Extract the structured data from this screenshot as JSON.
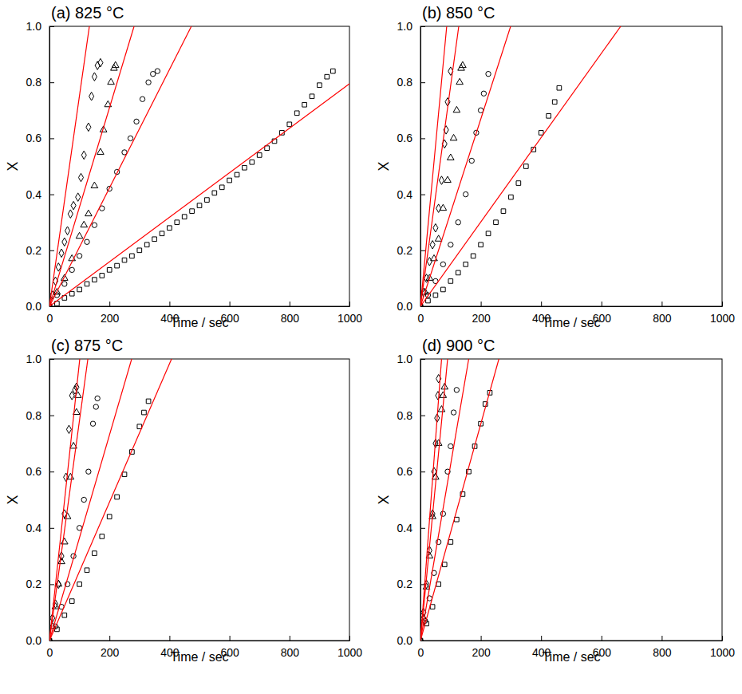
{
  "chart_data": [
    {
      "type": "scatter",
      "title": "(a) 825 °C",
      "x_label": "Time / sec",
      "y_label": "X",
      "xlim": [
        0,
        1000
      ],
      "ylim": [
        0,
        1
      ],
      "xticks": [
        0,
        200,
        400,
        600,
        800,
        1000
      ],
      "yticks": [
        {
          "value": 0,
          "label": "0.0"
        },
        0.2,
        0.4,
        0.6,
        0.8,
        {
          "value": 1,
          "label": "1.0"
        }
      ],
      "series": [
        {
          "type": "scatter",
          "marker": "diamond",
          "color": "#000000",
          "x": [
            0,
            10,
            20,
            30,
            40,
            50,
            60,
            70,
            80,
            95,
            105,
            115,
            130,
            140,
            150,
            160,
            170
          ],
          "values": [
            0,
            0.04,
            0.09,
            0.14,
            0.19,
            0.23,
            0.27,
            0.33,
            0.36,
            0.39,
            0.46,
            0.54,
            0.64,
            0.75,
            0.82,
            0.86,
            0.87
          ]
        },
        {
          "type": "scatter",
          "marker": "triangle",
          "color": "#000000",
          "x": [
            0,
            25,
            50,
            75,
            100,
            115,
            130,
            150,
            170,
            180,
            195,
            205,
            215,
            220
          ],
          "values": [
            0,
            0.05,
            0.1,
            0.17,
            0.25,
            0.29,
            0.33,
            0.43,
            0.55,
            0.63,
            0.72,
            0.8,
            0.85,
            0.86
          ]
        },
        {
          "type": "scatter",
          "marker": "circle",
          "color": "#000000",
          "x": [
            0,
            25,
            50,
            75,
            100,
            125,
            150,
            175,
            200,
            225,
            250,
            270,
            290,
            310,
            330,
            345,
            360
          ],
          "values": [
            0,
            0.04,
            0.08,
            0.13,
            0.18,
            0.23,
            0.29,
            0.35,
            0.42,
            0.48,
            0.55,
            0.6,
            0.66,
            0.74,
            0.8,
            0.83,
            0.84
          ]
        },
        {
          "type": "scatter",
          "marker": "square",
          "color": "#000000",
          "x": [
            0,
            25,
            50,
            75,
            100,
            125,
            150,
            175,
            200,
            225,
            250,
            275,
            300,
            325,
            350,
            375,
            400,
            425,
            450,
            475,
            500,
            525,
            550,
            575,
            600,
            625,
            650,
            675,
            700,
            725,
            750,
            775,
            800,
            825,
            850,
            875,
            900,
            925,
            945
          ],
          "values": [
            0,
            0.01,
            0.03,
            0.045,
            0.06,
            0.08,
            0.095,
            0.11,
            0.13,
            0.145,
            0.165,
            0.18,
            0.2,
            0.22,
            0.24,
            0.26,
            0.28,
            0.3,
            0.32,
            0.34,
            0.36,
            0.38,
            0.405,
            0.425,
            0.45,
            0.47,
            0.495,
            0.515,
            0.54,
            0.565,
            0.59,
            0.62,
            0.65,
            0.69,
            0.72,
            0.75,
            0.79,
            0.82,
            0.84
          ]
        },
        {
          "type": "line",
          "line_style": "solid",
          "color": "#ff0000",
          "x": [
            0,
            133
          ],
          "values": [
            0,
            1
          ]
        },
        {
          "type": "line",
          "line_style": "solid",
          "color": "#ff0000",
          "x": [
            0,
            282
          ],
          "values": [
            0,
            1
          ]
        },
        {
          "type": "line",
          "line_style": "solid",
          "color": "#ff0000",
          "x": [
            0,
            473
          ],
          "values": [
            0,
            1
          ]
        },
        {
          "type": "line",
          "line_style": "solid",
          "color": "#ff0000",
          "x": [
            0,
            1000
          ],
          "values": [
            0,
            0.795
          ]
        }
      ]
    },
    {
      "type": "scatter",
      "title": "(b) 850 °C",
      "x_label": "Time / sec",
      "y_label": "X",
      "xlim": [
        0,
        1000
      ],
      "ylim": [
        0,
        1
      ],
      "xticks": [
        0,
        200,
        400,
        600,
        800,
        1000
      ],
      "yticks": [
        {
          "value": 0,
          "label": "0.0"
        },
        0.2,
        0.4,
        0.6,
        0.8,
        {
          "value": 1,
          "label": "1.0"
        }
      ],
      "series": [
        {
          "type": "scatter",
          "marker": "diamond",
          "color": "#000000",
          "x": [
            0,
            10,
            20,
            30,
            40,
            50,
            60,
            70,
            80,
            85,
            90,
            100
          ],
          "values": [
            0,
            0.05,
            0.1,
            0.16,
            0.22,
            0.28,
            0.35,
            0.45,
            0.58,
            0.63,
            0.73,
            0.84
          ]
        },
        {
          "type": "scatter",
          "marker": "triangle",
          "color": "#000000",
          "x": [
            0,
            15,
            30,
            45,
            60,
            75,
            90,
            100,
            110,
            120,
            130,
            135,
            140
          ],
          "values": [
            0,
            0.05,
            0.1,
            0.17,
            0.24,
            0.35,
            0.45,
            0.53,
            0.6,
            0.7,
            0.8,
            0.85,
            0.86
          ]
        },
        {
          "type": "scatter",
          "marker": "circle",
          "color": "#000000",
          "x": [
            0,
            25,
            50,
            75,
            100,
            125,
            150,
            170,
            185,
            200,
            210,
            225
          ],
          "values": [
            0,
            0.04,
            0.09,
            0.15,
            0.22,
            0.3,
            0.4,
            0.52,
            0.62,
            0.7,
            0.76,
            0.83
          ]
        },
        {
          "type": "scatter",
          "marker": "square",
          "color": "#000000",
          "x": [
            0,
            25,
            50,
            75,
            100,
            125,
            150,
            175,
            200,
            225,
            250,
            275,
            300,
            325,
            350,
            375,
            400,
            425,
            445,
            460
          ],
          "values": [
            0,
            0.02,
            0.04,
            0.06,
            0.09,
            0.12,
            0.15,
            0.18,
            0.22,
            0.26,
            0.3,
            0.34,
            0.39,
            0.44,
            0.5,
            0.56,
            0.62,
            0.68,
            0.73,
            0.78
          ]
        },
        {
          "type": "line",
          "line_style": "solid",
          "color": "#ff0000",
          "x": [
            0,
            87
          ],
          "values": [
            0,
            1
          ]
        },
        {
          "type": "line",
          "line_style": "solid",
          "color": "#ff0000",
          "x": [
            0,
            127
          ],
          "values": [
            0,
            1
          ]
        },
        {
          "type": "line",
          "line_style": "solid",
          "color": "#ff0000",
          "x": [
            0,
            299
          ],
          "values": [
            0,
            1
          ]
        },
        {
          "type": "line",
          "line_style": "solid",
          "color": "#ff0000",
          "x": [
            0,
            664
          ],
          "values": [
            0,
            1
          ]
        }
      ]
    },
    {
      "type": "scatter",
      "title": "(c) 875 °C",
      "x_label": "Time / sec",
      "y_label": "X",
      "xlim": [
        0,
        1000
      ],
      "ylim": [
        0,
        1
      ],
      "xticks": [
        0,
        200,
        400,
        600,
        800,
        1000
      ],
      "yticks": [
        {
          "value": 0,
          "label": "0.0"
        },
        0.2,
        0.4,
        0.6,
        0.8,
        {
          "value": 1,
          "label": "1.0"
        }
      ],
      "series": [
        {
          "type": "scatter",
          "marker": "diamond",
          "color": "#000000",
          "x": [
            0,
            10,
            20,
            30,
            40,
            50,
            55,
            65,
            75,
            85,
            90
          ],
          "values": [
            0,
            0.08,
            0.13,
            0.2,
            0.3,
            0.45,
            0.58,
            0.75,
            0.87,
            0.89,
            0.9
          ]
        },
        {
          "type": "scatter",
          "marker": "triangle",
          "color": "#000000",
          "x": [
            0,
            10,
            20,
            30,
            40,
            50,
            60,
            70,
            80,
            90,
            95
          ],
          "values": [
            0,
            0.05,
            0.12,
            0.2,
            0.28,
            0.35,
            0.44,
            0.58,
            0.69,
            0.81,
            0.87
          ]
        },
        {
          "type": "scatter",
          "marker": "circle",
          "color": "#000000",
          "x": [
            0,
            20,
            40,
            60,
            80,
            100,
            115,
            130,
            145,
            155,
            160
          ],
          "values": [
            0,
            0.05,
            0.12,
            0.2,
            0.3,
            0.4,
            0.5,
            0.6,
            0.77,
            0.83,
            0.86
          ]
        },
        {
          "type": "scatter",
          "marker": "square",
          "color": "#000000",
          "x": [
            0,
            25,
            50,
            75,
            100,
            125,
            150,
            175,
            200,
            225,
            250,
            275,
            300,
            315,
            330
          ],
          "values": [
            0,
            0.04,
            0.09,
            0.14,
            0.2,
            0.25,
            0.31,
            0.37,
            0.44,
            0.51,
            0.59,
            0.67,
            0.76,
            0.81,
            0.85
          ]
        },
        {
          "type": "line",
          "line_style": "solid",
          "color": "#ff0000",
          "x": [
            0,
            101
          ],
          "values": [
            0,
            1
          ]
        },
        {
          "type": "line",
          "line_style": "solid",
          "color": "#ff0000",
          "x": [
            0,
            128
          ],
          "values": [
            0,
            1
          ]
        },
        {
          "type": "line",
          "line_style": "solid",
          "color": "#ff0000",
          "x": [
            0,
            274
          ],
          "values": [
            0,
            1
          ]
        },
        {
          "type": "line",
          "line_style": "solid",
          "color": "#ff0000",
          "x": [
            0,
            407
          ],
          "values": [
            0,
            1
          ]
        }
      ]
    },
    {
      "type": "scatter",
      "title": "(d) 900 °C",
      "x_label": "Time / sec",
      "y_label": "X",
      "xlim": [
        0,
        1000
      ],
      "ylim": [
        0,
        1
      ],
      "xticks": [
        0,
        200,
        400,
        600,
        800,
        1000
      ],
      "yticks": [
        {
          "value": 0,
          "label": "0.0"
        },
        0.2,
        0.4,
        0.6,
        0.8,
        {
          "value": 1,
          "label": "1.0"
        }
      ],
      "series": [
        {
          "type": "scatter",
          "marker": "diamond",
          "color": "#000000",
          "x": [
            0,
            10,
            20,
            30,
            40,
            45,
            50,
            55,
            58,
            60
          ],
          "values": [
            0,
            0.1,
            0.2,
            0.32,
            0.45,
            0.6,
            0.7,
            0.79,
            0.87,
            0.93
          ]
        },
        {
          "type": "scatter",
          "marker": "triangle",
          "color": "#000000",
          "x": [
            0,
            10,
            20,
            30,
            40,
            50,
            60,
            70,
            75,
            80
          ],
          "values": [
            0,
            0.08,
            0.19,
            0.3,
            0.44,
            0.58,
            0.7,
            0.82,
            0.87,
            0.9
          ]
        },
        {
          "type": "scatter",
          "marker": "circle",
          "color": "#000000",
          "x": [
            0,
            15,
            30,
            45,
            60,
            75,
            90,
            100,
            110,
            120
          ],
          "values": [
            0,
            0.07,
            0.15,
            0.24,
            0.35,
            0.45,
            0.6,
            0.69,
            0.81,
            0.89
          ]
        },
        {
          "type": "scatter",
          "marker": "square",
          "color": "#000000",
          "x": [
            0,
            20,
            40,
            60,
            80,
            100,
            120,
            140,
            160,
            180,
            200,
            215,
            230
          ],
          "values": [
            0,
            0.06,
            0.12,
            0.2,
            0.27,
            0.35,
            0.43,
            0.52,
            0.6,
            0.69,
            0.77,
            0.84,
            0.88
          ]
        },
        {
          "type": "line",
          "line_style": "solid",
          "color": "#ff0000",
          "x": [
            0,
            70
          ],
          "values": [
            0,
            1
          ]
        },
        {
          "type": "line",
          "line_style": "solid",
          "color": "#ff0000",
          "x": [
            0,
            90
          ],
          "values": [
            0,
            1
          ]
        },
        {
          "type": "line",
          "line_style": "solid",
          "color": "#ff0000",
          "x": [
            0,
            160
          ],
          "values": [
            0,
            1
          ]
        },
        {
          "type": "line",
          "line_style": "solid",
          "color": "#ff0000",
          "x": [
            0,
            260
          ],
          "values": [
            0,
            1
          ]
        }
      ]
    }
  ]
}
